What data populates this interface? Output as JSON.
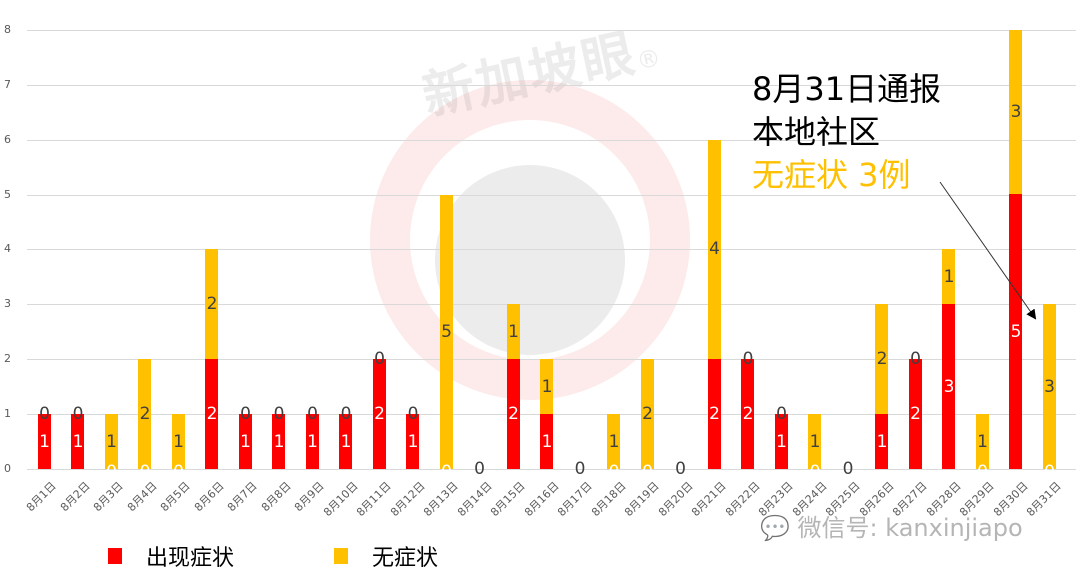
{
  "chart_data": {
    "type": "bar",
    "stacked": true,
    "title": "",
    "xlabel": "",
    "ylabel": "",
    "ylim": [
      0,
      8
    ],
    "yticks": [
      "0",
      "1",
      "2",
      "3",
      "4",
      "5",
      "6",
      "7",
      "8"
    ],
    "grid": true,
    "legend_position": "bottom",
    "categories": [
      "8月1日",
      "8月2日",
      "8月3日",
      "8月4日",
      "8月5日",
      "8月6日",
      "8月7日",
      "8月8日",
      "8月9日",
      "8月10日",
      "8月11日",
      "8月12日",
      "8月13日",
      "8月14日",
      "8月15日",
      "8月16日",
      "8月17日",
      "8月18日",
      "8月19日",
      "8月20日",
      "8月21日",
      "8月22日",
      "8月23日",
      "8月24日",
      "8月25日",
      "8月26日",
      "8月27日",
      "8月28日",
      "8月29日",
      "8月30日",
      "8月31日"
    ],
    "series": [
      {
        "name": "出现症状",
        "color": "#ff0000",
        "values": [
          1,
          1,
          0,
          0,
          0,
          2,
          1,
          1,
          1,
          1,
          2,
          1,
          0,
          0,
          2,
          1,
          0,
          0,
          0,
          0,
          2,
          2,
          1,
          0,
          0,
          1,
          2,
          3,
          0,
          5,
          0
        ]
      },
      {
        "name": "无症状",
        "color": "#ffc000",
        "values": [
          0,
          0,
          1,
          2,
          1,
          2,
          0,
          0,
          0,
          0,
          0,
          0,
          5,
          0,
          1,
          1,
          0,
          1,
          2,
          0,
          4,
          0,
          0,
          1,
          0,
          2,
          0,
          1,
          1,
          3,
          3
        ]
      }
    ],
    "annotation": {
      "line1": "8月31日通报",
      "line2": "本地社区",
      "line3": "无症状 3例",
      "arrow_target": "8月31日"
    }
  },
  "legend": [
    {
      "label": "出现症状",
      "color": "#ff0000"
    },
    {
      "label": "无症状",
      "color": "#ffc000"
    }
  ],
  "watermark": {
    "brand": "新加坡眼",
    "registered": "®",
    "wechat": "微信号: kanxinjiapo"
  },
  "colors": {
    "symptomatic": "#ff0000",
    "asymptomatic": "#ffc000",
    "grid": "#d9d9d9",
    "axis_text": "#595959"
  }
}
